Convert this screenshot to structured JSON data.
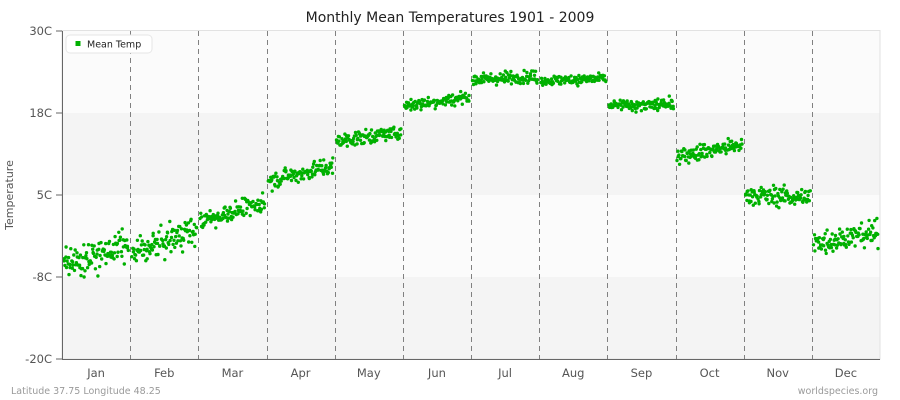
{
  "title": "Monthly Mean Temperatures 1901 - 2009",
  "footer": {
    "location": "Latitude 37.75 Longitude 48.25",
    "source": "worldspecies.org"
  },
  "legend": {
    "label": "Mean Temp",
    "color": "#00b000"
  },
  "colors": {
    "dot": "#00b000",
    "band_light": "#fbfbfb",
    "band_dark": "#f4f4f4",
    "axis": "#666666",
    "gridline": "#808080",
    "frame": "#e2e2e2"
  },
  "chart_data": {
    "type": "scatter",
    "title": "Monthly Mean Temperatures 1901 - 2009",
    "xlabel": "",
    "ylabel": "Temperature",
    "ylim": [
      -20,
      30
    ],
    "yticks": [
      {
        "value": 30,
        "label": "30C"
      },
      {
        "value": 17.5,
        "label": "18C"
      },
      {
        "value": 5,
        "label": "5C"
      },
      {
        "value": -7.5,
        "label": "-8C"
      },
      {
        "value": -20,
        "label": "-20C"
      }
    ],
    "categories": [
      "Jan",
      "Feb",
      "Mar",
      "Apr",
      "May",
      "Jun",
      "Jul",
      "Aug",
      "Sep",
      "Oct",
      "Nov",
      "Dec"
    ],
    "years": [
      1901,
      2009
    ],
    "points_per_month": 109,
    "grid": {
      "vertical_dashed_month_separators": true,
      "horizontal_bands": true
    },
    "legend_position": "top-left",
    "series": [
      {
        "name": "Mean Temp",
        "approx_mean": [
          -4.0,
          -2.3,
          2.4,
          8.2,
          13.7,
          19.2,
          22.8,
          22.5,
          18.3,
          11.6,
          4.6,
          -1.6
        ],
        "approx_min": [
          -12.0,
          -9.5,
          -2.5,
          5.0,
          10.5,
          15.5,
          19.5,
          19.5,
          15.5,
          8.0,
          0.5,
          -6.5
        ],
        "approx_max": [
          3.5,
          2.5,
          6.0,
          11.5,
          16.0,
          21.5,
          25.0,
          24.5,
          21.0,
          14.5,
          7.5,
          2.0
        ],
        "trend_start": [
          -5.8,
          -4.0,
          1.0,
          7.2,
          13.2,
          18.6,
          22.6,
          22.4,
          18.6,
          11.0,
          5.0,
          -2.2
        ],
        "trend_end": [
          -2.6,
          -0.2,
          3.8,
          9.4,
          14.6,
          20.0,
          23.0,
          22.8,
          18.8,
          12.6,
          4.6,
          -0.8
        ],
        "spread_sd": [
          2.1,
          1.9,
          1.4,
          1.2,
          1.0,
          0.9,
          0.8,
          0.8,
          0.9,
          1.2,
          1.3,
          1.7
        ]
      }
    ]
  }
}
